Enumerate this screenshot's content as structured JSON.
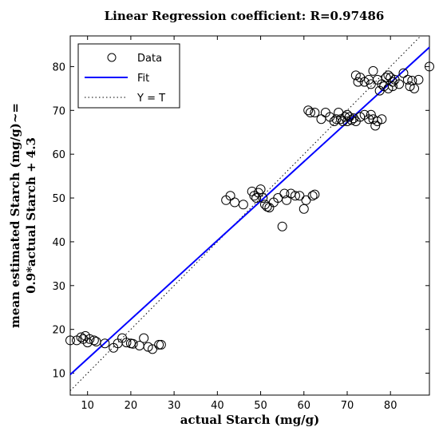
{
  "chart_data": {
    "type": "scatter",
    "title": "Linear Regression coefficient: R=0.97486",
    "xlabel": "actual Starch (mg/g)",
    "ylabel_lines": [
      "mean estimated Starch (mg/g)~=",
      "0.9*actual Starch + 4.3"
    ],
    "xlim": [
      6,
      89
    ],
    "ylim": [
      5,
      87
    ],
    "xticks": [
      10,
      20,
      30,
      40,
      50,
      60,
      70,
      80
    ],
    "yticks": [
      10,
      20,
      30,
      40,
      50,
      60,
      70,
      80
    ],
    "legend_position": "top-left",
    "legend": {
      "data": "Data",
      "fit": "Fit",
      "identity": "Y = T"
    },
    "colors": {
      "data": "#000000",
      "fit": "#0000ff",
      "identity": "#000000"
    },
    "fit": {
      "slope": 0.9,
      "intercept": 4.3
    },
    "points": [
      [
        6,
        17.5
      ],
      [
        7.5,
        17.5
      ],
      [
        8.5,
        18.2
      ],
      [
        9,
        17.8
      ],
      [
        9.5,
        18.5
      ],
      [
        10,
        17
      ],
      [
        10.5,
        17.8
      ],
      [
        11.5,
        17.5
      ],
      [
        12,
        17.2
      ],
      [
        14,
        16.8
      ],
      [
        16,
        15.8
      ],
      [
        17,
        16.8
      ],
      [
        18,
        18
      ],
      [
        19,
        17
      ],
      [
        20,
        16.8
      ],
      [
        20.5,
        16.7
      ],
      [
        22,
        16.3
      ],
      [
        23,
        18
      ],
      [
        24,
        16
      ],
      [
        25,
        15.5
      ],
      [
        26.5,
        16.5
      ],
      [
        27,
        16.5
      ],
      [
        42,
        49.5
      ],
      [
        43,
        50.5
      ],
      [
        44,
        49
      ],
      [
        46,
        48.5
      ],
      [
        48,
        51.5
      ],
      [
        48.5,
        50.5
      ],
      [
        49,
        50
      ],
      [
        49.5,
        51.2
      ],
      [
        50,
        52
      ],
      [
        50.5,
        50
      ],
      [
        51,
        48.5
      ],
      [
        51.5,
        48
      ],
      [
        52,
        47.8
      ],
      [
        53,
        49
      ],
      [
        54,
        50
      ],
      [
        55,
        43.5
      ],
      [
        55.5,
        51
      ],
      [
        56,
        49.5
      ],
      [
        57,
        51
      ],
      [
        58,
        50.5
      ],
      [
        59,
        50.5
      ],
      [
        60,
        47.5
      ],
      [
        60.5,
        49.5
      ],
      [
        62,
        50.5
      ],
      [
        62.5,
        50.8
      ],
      [
        61,
        70
      ],
      [
        61.5,
        69.5
      ],
      [
        62.5,
        69.5
      ],
      [
        64,
        68
      ],
      [
        65,
        69.5
      ],
      [
        66,
        68.5
      ],
      [
        67,
        67.5
      ],
      [
        67.5,
        68
      ],
      [
        68,
        69.5
      ],
      [
        68.5,
        68
      ],
      [
        69,
        67.5
      ],
      [
        69.5,
        68.5
      ],
      [
        70,
        69
      ],
      [
        70,
        67.5
      ],
      [
        70.5,
        68.5
      ],
      [
        71,
        67.8
      ],
      [
        71.5,
        68.2
      ],
      [
        72,
        67.5
      ],
      [
        73,
        68.5
      ],
      [
        74,
        69
      ],
      [
        75,
        68
      ],
      [
        75.5,
        69
      ],
      [
        76,
        68
      ],
      [
        76.5,
        66.5
      ],
      [
        77,
        67.5
      ],
      [
        78,
        68
      ],
      [
        72,
        78
      ],
      [
        72.5,
        76.5
      ],
      [
        73,
        77.5
      ],
      [
        74,
        76.5
      ],
      [
        75,
        77
      ],
      [
        75.5,
        76
      ],
      [
        76,
        79
      ],
      [
        77,
        77
      ],
      [
        77.5,
        74.5
      ],
      [
        78,
        76
      ],
      [
        78.5,
        75.5
      ],
      [
        79,
        77.5
      ],
      [
        79.5,
        78
      ],
      [
        79.5,
        75
      ],
      [
        80,
        77.5
      ],
      [
        80.5,
        76.5
      ],
      [
        80.5,
        75.5
      ],
      [
        81,
        77
      ],
      [
        82,
        76
      ],
      [
        83,
        78.5
      ],
      [
        84,
        77
      ],
      [
        84.5,
        75.5
      ],
      [
        85,
        76.8
      ],
      [
        85.5,
        75
      ],
      [
        86.5,
        77
      ],
      [
        89,
        80
      ]
    ]
  }
}
